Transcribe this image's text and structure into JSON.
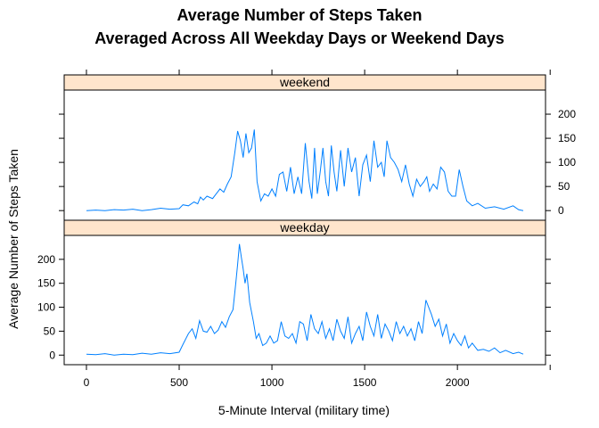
{
  "chart_data": {
    "type": "line",
    "title": "Average Number of Steps Taken",
    "subtitle": "Averaged Across All Weekday Days or Weekend Days",
    "xlabel": "5-Minute Interval (military time)",
    "ylabel": "Average Number of Steps Taken",
    "xlim": [
      -120,
      2475
    ],
    "ylim": [
      -20,
      250
    ],
    "x_ticks": [
      0,
      500,
      1000,
      1500,
      2000
    ],
    "y_ticks": [
      0,
      50,
      100,
      150,
      200
    ],
    "grid": false,
    "layout": "two stacked panels with shared x axis",
    "line_color": "#0080ff",
    "strip_color": "#ffe5cc",
    "panels": [
      {
        "name": "weekend",
        "series": [
          {
            "x": [
              0,
              50,
              100,
              150,
              200,
              250,
              300,
              350,
              400,
              450,
              500,
              520,
              550,
              580,
              600,
              615,
              630,
              650,
              680,
              700,
              720,
              740,
              760,
              780,
              800,
              815,
              830,
              845,
              860,
              875,
              890,
              905,
              920,
              940,
              960,
              980,
              1000,
              1020,
              1040,
              1060,
              1080,
              1100,
              1120,
              1140,
              1160,
              1180,
              1200,
              1215,
              1230,
              1245,
              1260,
              1275,
              1290,
              1305,
              1320,
              1335,
              1350,
              1370,
              1390,
              1410,
              1430,
              1450,
              1470,
              1490,
              1510,
              1530,
              1550,
              1570,
              1590,
              1605,
              1620,
              1640,
              1660,
              1680,
              1700,
              1720,
              1740,
              1760,
              1780,
              1800,
              1820,
              1835,
              1850,
              1870,
              1890,
              1910,
              1930,
              1950,
              1970,
              1990,
              2010,
              2030,
              2050,
              2080,
              2110,
              2150,
              2200,
              2250,
              2300,
              2330,
              2355
            ],
            "y": [
              0,
              1,
              0,
              2,
              1,
              3,
              0,
              2,
              5,
              3,
              4,
              12,
              10,
              18,
              14,
              28,
              22,
              30,
              25,
              35,
              45,
              38,
              55,
              70,
              120,
              165,
              145,
              110,
              160,
              120,
              130,
              168,
              60,
              20,
              35,
              30,
              45,
              30,
              75,
              80,
              40,
              90,
              35,
              70,
              35,
              140,
              60,
              25,
              130,
              35,
              80,
              130,
              60,
              30,
              135,
              80,
              40,
              125,
              50,
              130,
              80,
              110,
              30,
              95,
              115,
              60,
              145,
              90,
              100,
              70,
              145,
              110,
              100,
              85,
              60,
              95,
              55,
              30,
              65,
              50,
              60,
              70,
              40,
              55,
              45,
              90,
              80,
              40,
              30,
              30,
              85,
              50,
              20,
              10,
              15,
              5,
              8,
              3,
              10,
              2,
              0
            ]
          }
        ]
      },
      {
        "name": "weekday",
        "series": [
          {
            "x": [
              0,
              50,
              100,
              150,
              200,
              250,
              300,
              350,
              400,
              450,
              500,
              520,
              550,
              570,
              590,
              610,
              630,
              650,
              670,
              690,
              710,
              730,
              750,
              770,
              790,
              805,
              815,
              825,
              835,
              845,
              855,
              865,
              880,
              900,
              915,
              930,
              950,
              970,
              990,
              1010,
              1030,
              1050,
              1070,
              1090,
              1110,
              1130,
              1150,
              1170,
              1190,
              1210,
              1230,
              1250,
              1270,
              1290,
              1310,
              1330,
              1350,
              1370,
              1390,
              1410,
              1430,
              1450,
              1470,
              1490,
              1510,
              1530,
              1550,
              1570,
              1590,
              1610,
              1630,
              1650,
              1670,
              1690,
              1710,
              1730,
              1750,
              1770,
              1790,
              1810,
              1830,
              1845,
              1860,
              1880,
              1900,
              1920,
              1940,
              1960,
              1980,
              2000,
              2020,
              2040,
              2060,
              2080,
              2110,
              2140,
              2170,
              2200,
              2230,
              2260,
              2300,
              2330,
              2355
            ],
            "y": [
              2,
              1,
              3,
              0,
              2,
              1,
              4,
              2,
              5,
              3,
              6,
              22,
              45,
              55,
              35,
              72,
              50,
              48,
              60,
              45,
              52,
              70,
              58,
              80,
              95,
              150,
              190,
              232,
              205,
              180,
              150,
              170,
              110,
              70,
              35,
              45,
              20,
              25,
              40,
              25,
              30,
              70,
              40,
              35,
              45,
              25,
              70,
              65,
              30,
              85,
              55,
              45,
              70,
              35,
              55,
              30,
              75,
              50,
              35,
              80,
              25,
              45,
              60,
              30,
              90,
              60,
              40,
              85,
              35,
              65,
              50,
              30,
              70,
              45,
              60,
              40,
              55,
              30,
              70,
              45,
              115,
              100,
              85,
              60,
              75,
              40,
              65,
              25,
              45,
              30,
              20,
              40,
              15,
              25,
              10,
              12,
              8,
              15,
              5,
              10,
              3,
              6,
              2
            ]
          }
        ]
      }
    ]
  }
}
